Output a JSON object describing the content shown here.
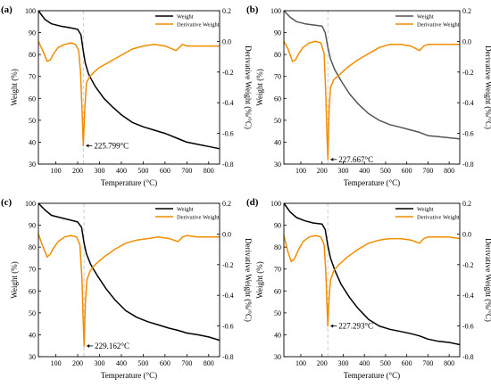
{
  "chart_data": [
    {
      "type": "line",
      "panel": "(a)",
      "xlabel": "Temperature (°C)",
      "ylabel": "Weight (%)",
      "y2label": "Derivative Weight (%/°C)",
      "xlim": [
        20,
        850
      ],
      "ylim": [
        30,
        100
      ],
      "y2lim": [
        -0.8,
        0.2
      ],
      "xticks": [
        100,
        200,
        300,
        400,
        500,
        600,
        700,
        800
      ],
      "yticks": [
        30,
        40,
        50,
        60,
        70,
        80,
        90,
        100
      ],
      "y2ticks": [
        -0.8,
        -0.6,
        -0.4,
        -0.2,
        0.0,
        0.2
      ],
      "legend_position": "top-right",
      "annotation": {
        "text": "225.799°C",
        "x": 225.8
      },
      "series": [
        {
          "name": "Weight",
          "axis": "left",
          "color": "#000000",
          "x": [
            20,
            50,
            80,
            120,
            160,
            200,
            215,
            225,
            235,
            250,
            280,
            320,
            360,
            400,
            450,
            500,
            550,
            600,
            650,
            680,
            700,
            750,
            800,
            850
          ],
          "y": [
            100,
            96,
            94,
            93,
            92.3,
            91.5,
            89,
            82,
            76,
            71,
            65.5,
            60,
            56,
            52.5,
            49,
            47,
            45.5,
            44,
            42,
            40.8,
            40,
            39,
            38,
            37
          ]
        },
        {
          "name": "Derivative Weight",
          "axis": "right",
          "color": "#F28C00",
          "x": [
            20,
            40,
            60,
            75,
            90,
            110,
            140,
            170,
            190,
            205,
            213,
            220,
            225.8,
            232,
            240,
            255,
            275,
            300,
            350,
            400,
            450,
            500,
            550,
            600,
            650,
            680,
            700,
            750,
            800,
            850
          ],
          "y": [
            0.0,
            -0.06,
            -0.13,
            -0.12,
            -0.08,
            -0.04,
            -0.02,
            -0.01,
            -0.02,
            -0.06,
            -0.2,
            -0.45,
            -0.68,
            -0.45,
            -0.27,
            -0.23,
            -0.2,
            -0.17,
            -0.13,
            -0.09,
            -0.05,
            -0.03,
            -0.02,
            -0.03,
            -0.06,
            -0.02,
            -0.03,
            -0.03,
            -0.03,
            -0.03
          ]
        }
      ]
    },
    {
      "type": "line",
      "panel": "(b)",
      "xlabel": "Temperature (°C)",
      "ylabel": "Weight (%)",
      "y2label": "Derivative Weight (%/°C)",
      "xlim": [
        20,
        850
      ],
      "ylim": [
        30,
        100
      ],
      "y2lim": [
        -0.8,
        0.2
      ],
      "xticks": [
        100,
        200,
        300,
        400,
        500,
        600,
        700,
        800
      ],
      "yticks": [
        30,
        40,
        50,
        60,
        70,
        80,
        90,
        100
      ],
      "y2ticks": [
        -0.8,
        -0.6,
        -0.4,
        -0.2,
        0.0,
        0.2
      ],
      "legend_position": "top-right",
      "annotation": {
        "text": "227.667°C",
        "x": 227.667
      },
      "series": [
        {
          "name": "Weight",
          "axis": "left",
          "color": "#555555",
          "x": [
            20,
            50,
            80,
            120,
            160,
            200,
            215,
            228,
            240,
            260,
            290,
            330,
            370,
            420,
            470,
            520,
            570,
            620,
            660,
            700,
            750,
            800,
            850
          ],
          "y": [
            100,
            97,
            95,
            94,
            93.5,
            93,
            90,
            83,
            78,
            73,
            68,
            62,
            57.5,
            53,
            50,
            48,
            46.8,
            45.5,
            44.5,
            43,
            42.5,
            42,
            41.5
          ]
        },
        {
          "name": "Derivative Weight",
          "axis": "right",
          "color": "#F28C00",
          "x": [
            20,
            40,
            60,
            75,
            90,
            110,
            140,
            170,
            195,
            210,
            218,
            223,
            227.7,
            233,
            240,
            255,
            280,
            320,
            370,
            420,
            470,
            520,
            570,
            620,
            660,
            680,
            700,
            750,
            800,
            850
          ],
          "y": [
            0.0,
            -0.05,
            -0.13,
            -0.12,
            -0.08,
            -0.04,
            -0.01,
            0.0,
            -0.01,
            -0.08,
            -0.35,
            -0.6,
            -0.77,
            -0.45,
            -0.3,
            -0.25,
            -0.22,
            -0.17,
            -0.12,
            -0.08,
            -0.04,
            -0.02,
            -0.02,
            -0.03,
            -0.06,
            -0.03,
            -0.02,
            -0.02,
            -0.02,
            -0.02
          ]
        }
      ]
    },
    {
      "type": "line",
      "panel": "(c)",
      "xlabel": "Temperature (°C)",
      "ylabel": "Weight (%)",
      "y2label": "Derivative Weight (%/°C)",
      "xlim": [
        20,
        850
      ],
      "ylim": [
        30,
        100
      ],
      "y2lim": [
        -0.8,
        0.2
      ],
      "xticks": [
        100,
        200,
        300,
        400,
        500,
        600,
        700,
        800
      ],
      "yticks": [
        30,
        40,
        50,
        60,
        70,
        80,
        90,
        100
      ],
      "y2ticks": [
        -0.8,
        -0.6,
        -0.4,
        -0.2,
        0.0,
        0.2
      ],
      "legend_position": "top-right",
      "annotation": {
        "text": "229.162°C",
        "x": 229.162
      },
      "series": [
        {
          "name": "Weight",
          "axis": "left",
          "color": "#000000",
          "x": [
            20,
            50,
            80,
            120,
            160,
            200,
            218,
            229,
            240,
            260,
            290,
            330,
            370,
            420,
            470,
            520,
            570,
            620,
            660,
            700,
            750,
            800,
            850
          ],
          "y": [
            100,
            97,
            94.5,
            93.5,
            92.5,
            91.5,
            89,
            82,
            77,
            72,
            67,
            61,
            56,
            51,
            48,
            46,
            44.5,
            43,
            42,
            40.8,
            40,
            39,
            37.5
          ]
        },
        {
          "name": "Derivative Weight",
          "axis": "right",
          "color": "#F28C00",
          "x": [
            20,
            40,
            60,
            75,
            90,
            110,
            140,
            170,
            195,
            210,
            220,
            225,
            229.2,
            235,
            242,
            257,
            280,
            320,
            370,
            420,
            470,
            520,
            570,
            620,
            660,
            680,
            700,
            750,
            800,
            850
          ],
          "y": [
            0.0,
            -0.08,
            -0.15,
            -0.13,
            -0.09,
            -0.05,
            -0.02,
            -0.01,
            -0.02,
            -0.07,
            -0.3,
            -0.55,
            -0.73,
            -0.45,
            -0.3,
            -0.24,
            -0.2,
            -0.15,
            -0.1,
            -0.06,
            -0.04,
            -0.03,
            -0.02,
            -0.03,
            -0.05,
            -0.02,
            -0.01,
            -0.02,
            -0.02,
            -0.02
          ]
        }
      ]
    },
    {
      "type": "line",
      "panel": "(d)",
      "xlabel": "Temperature (°C)",
      "ylabel": "Weight (%)",
      "y2label": "Derivative Weight (%/°C)",
      "xlim": [
        20,
        850
      ],
      "ylim": [
        30,
        100
      ],
      "y2lim": [
        -0.8,
        0.2
      ],
      "xticks": [
        100,
        200,
        300,
        400,
        500,
        600,
        700,
        800
      ],
      "yticks": [
        30,
        40,
        50,
        60,
        70,
        80,
        90,
        100
      ],
      "y2ticks": [
        -0.8,
        -0.6,
        -0.4,
        -0.2,
        0.0,
        0.2
      ],
      "legend_position": "top-right",
      "annotation": {
        "text": "227.293°C",
        "x": 227.293
      },
      "series": [
        {
          "name": "Weight",
          "axis": "left",
          "color": "#000000",
          "x": [
            20,
            50,
            80,
            120,
            160,
            200,
            215,
            227,
            240,
            260,
            290,
            330,
            370,
            420,
            470,
            520,
            570,
            620,
            660,
            700,
            750,
            800,
            850
          ],
          "y": [
            100,
            96,
            93.5,
            92,
            91,
            90.5,
            88,
            81,
            75,
            69.5,
            63,
            57,
            52,
            47,
            44,
            42.5,
            41.5,
            40.5,
            39.5,
            38,
            37,
            36.5,
            35.5
          ]
        },
        {
          "name": "Derivative Weight",
          "axis": "right",
          "color": "#F28C00",
          "x": [
            20,
            40,
            55,
            70,
            90,
            110,
            140,
            170,
            195,
            210,
            218,
            223,
            227.3,
            233,
            240,
            255,
            280,
            320,
            370,
            420,
            470,
            520,
            570,
            620,
            660,
            680,
            700,
            750,
            800,
            850
          ],
          "y": [
            -0.01,
            -0.12,
            -0.18,
            -0.16,
            -0.1,
            -0.05,
            -0.02,
            -0.01,
            -0.02,
            -0.07,
            -0.25,
            -0.45,
            -0.6,
            -0.42,
            -0.3,
            -0.24,
            -0.2,
            -0.15,
            -0.1,
            -0.06,
            -0.04,
            -0.03,
            -0.03,
            -0.04,
            -0.06,
            -0.03,
            -0.02,
            -0.02,
            -0.02,
            -0.03
          ]
        }
      ]
    }
  ]
}
